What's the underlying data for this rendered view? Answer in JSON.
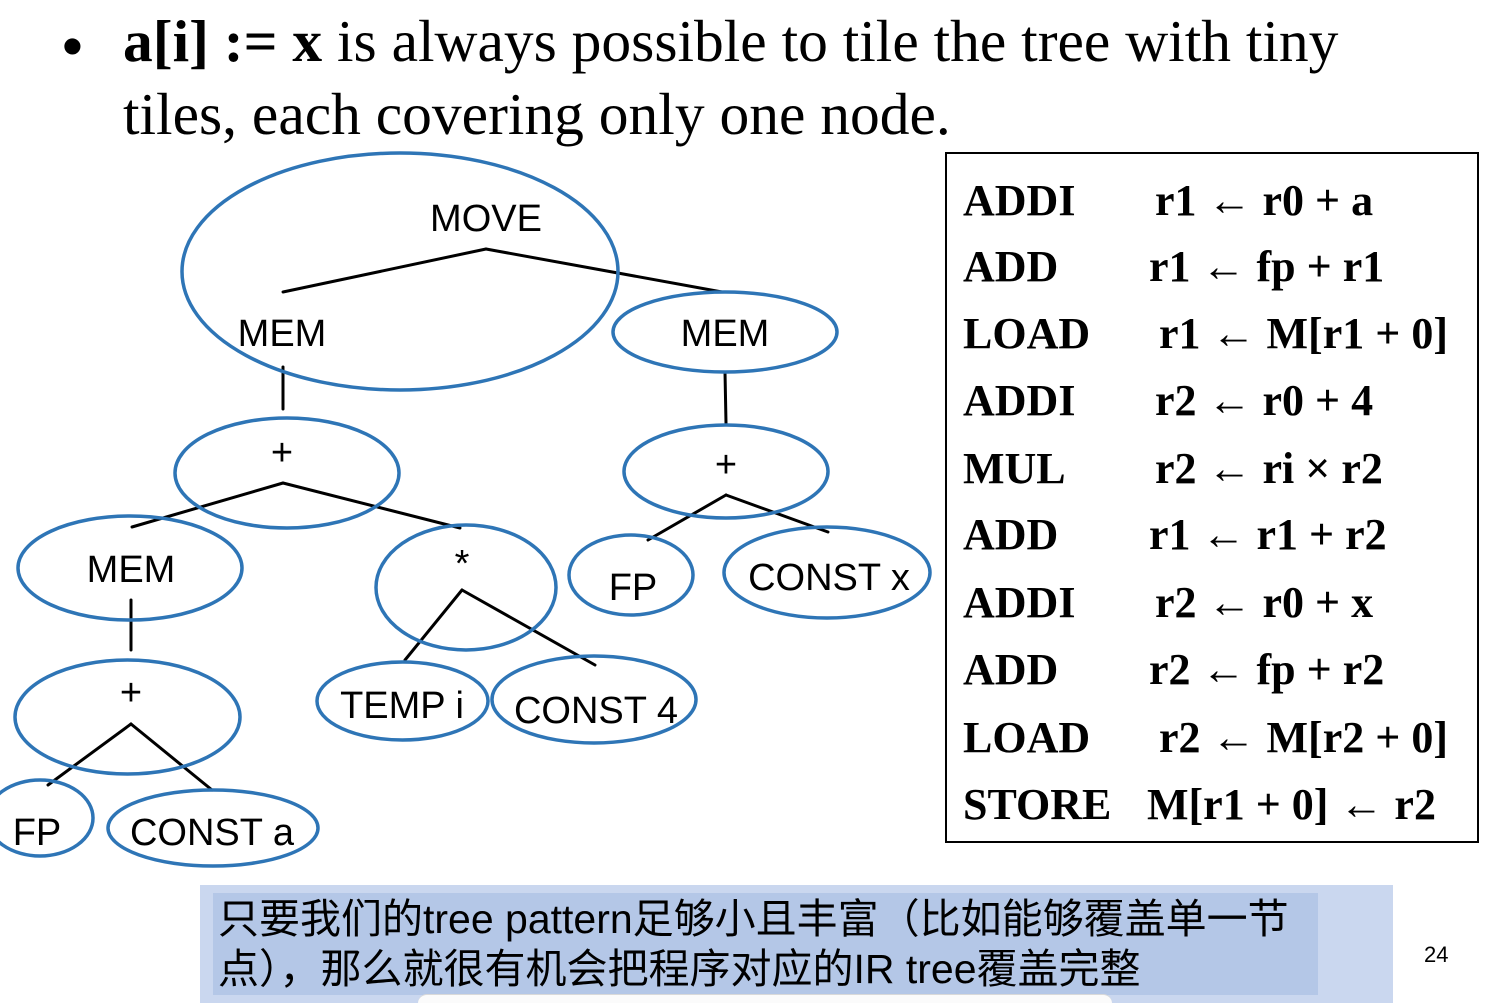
{
  "bullet": {
    "marker": "•",
    "code": "a[i] := x",
    "line1_rest": "is always possible to tile the tree with tiny",
    "line2": "tiles, each covering only one node."
  },
  "tree": {
    "move": "MOVE",
    "mem_dst": "MEM",
    "mem_src": "MEM",
    "plus_dst": "+",
    "plus_src": "+",
    "mem_base": "MEM",
    "times": "*",
    "fp_src": "FP",
    "const_x": "CONST x",
    "plus_base": "+",
    "temp_i": "TEMP i",
    "const_4": "CONST 4",
    "fp_base": "FP",
    "const_a": "CONST a"
  },
  "instructions": [
    {
      "op": "ADDI",
      "operands": "r1 ← r0 + a"
    },
    {
      "op": "ADD",
      "operands": "r1 ← fp + r1"
    },
    {
      "op": "LOAD",
      "operands": "r1 ← M[r1 + 0]"
    },
    {
      "op": "ADDI",
      "operands": "r2 ← r0 + 4"
    },
    {
      "op": "MUL",
      "operands": "r2 ← ri × r2"
    },
    {
      "op": "ADD",
      "operands": "r1 ← r1 + r2"
    },
    {
      "op": "ADDI",
      "operands": "r2 ← r0 + x"
    },
    {
      "op": "ADD",
      "operands": "r2 ← fp + r2"
    },
    {
      "op": "LOAD",
      "operands": "r2 ← M[r2 + 0]"
    },
    {
      "op": "STORE",
      "operands": "M[r1 + 0] ← r2"
    }
  ],
  "note": {
    "lines": [
      "只要我们的tree pattern足够小且丰富（比如能够覆盖单一节",
      "点），那么就很有机会把程序对应的IR tree覆盖完整"
    ]
  },
  "page_number": "24",
  "colors": {
    "tile": "#2e75b6",
    "note_background": "#b4c7e7",
    "note_frame": "#cad7ef"
  }
}
